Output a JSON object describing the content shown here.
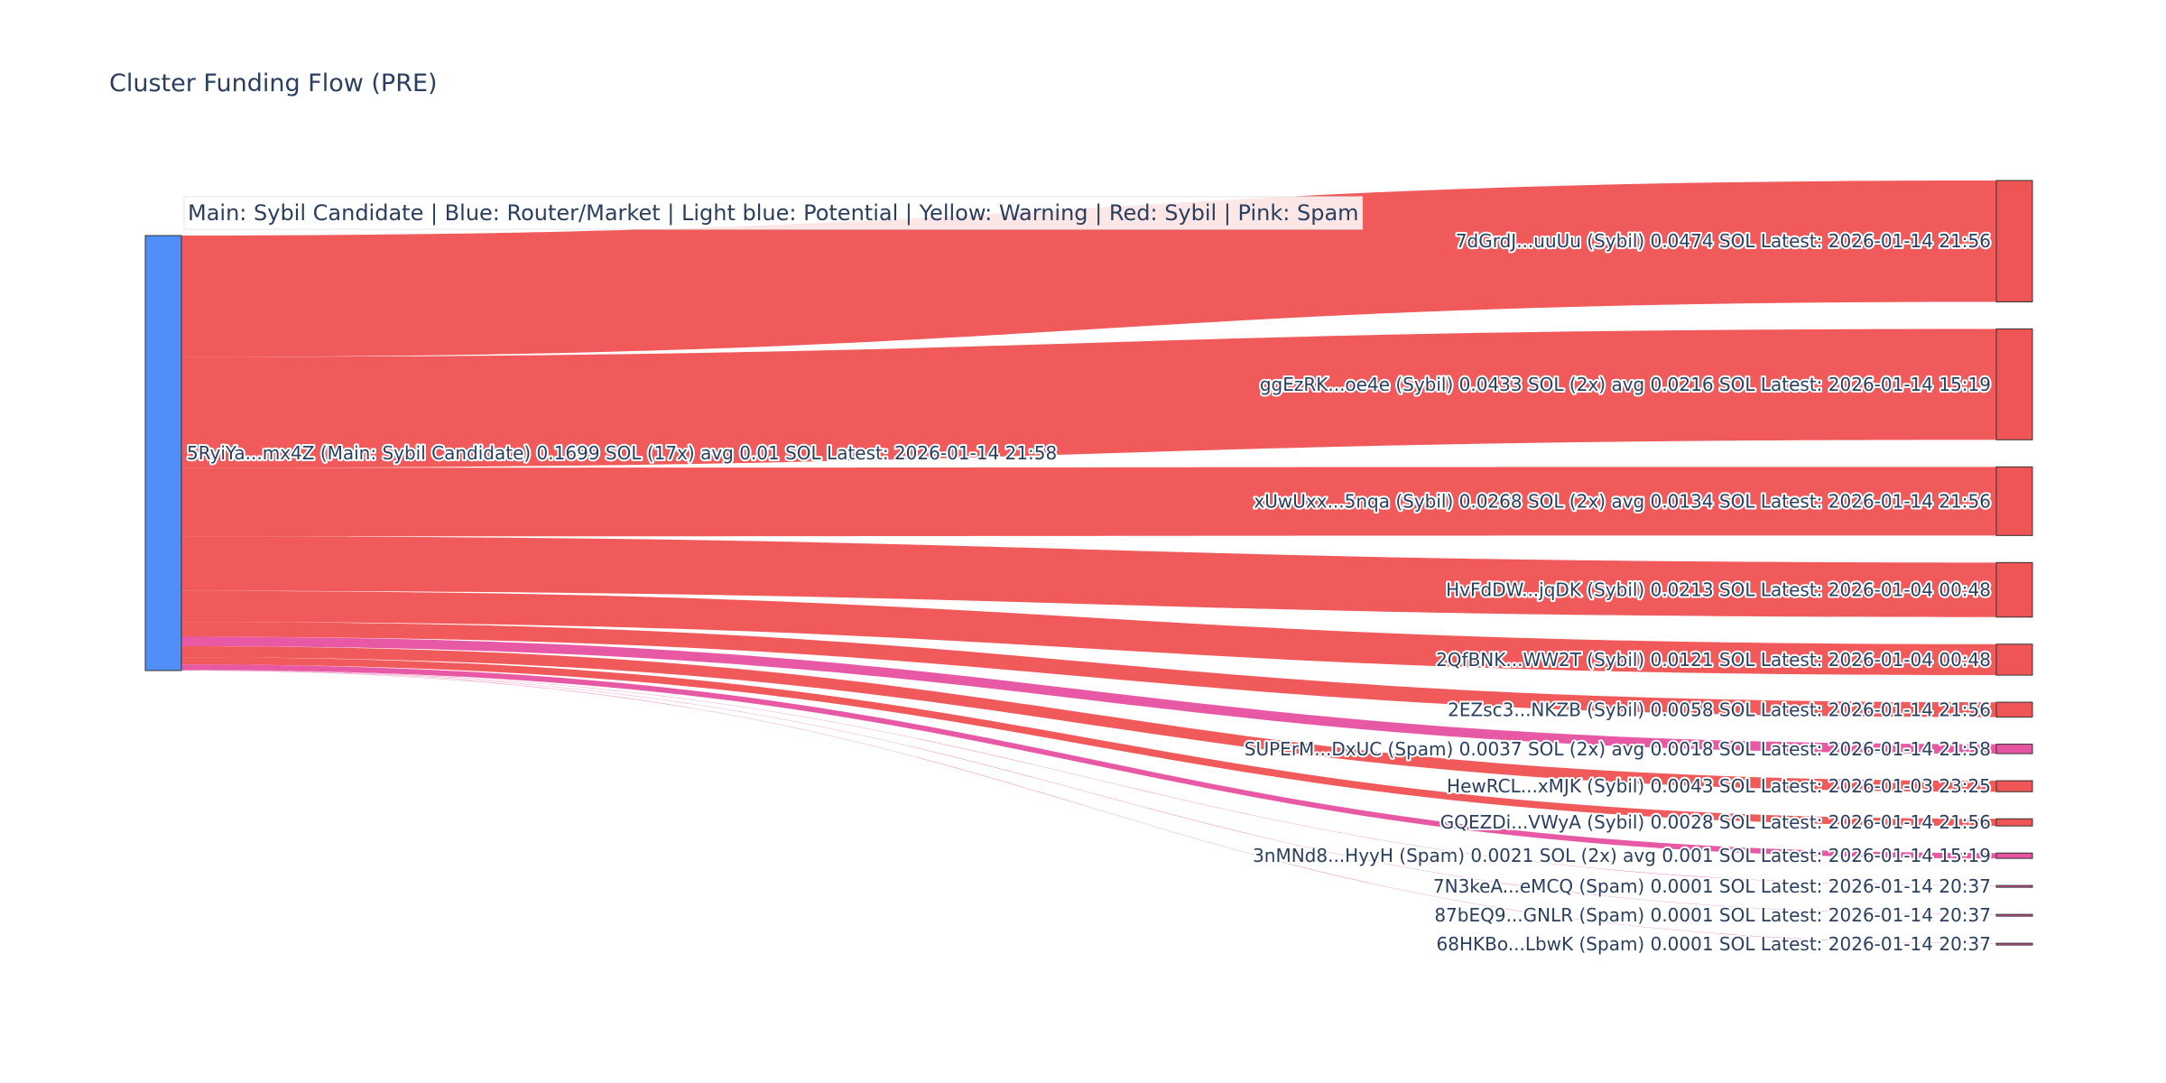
{
  "chart_data": {
    "type": "sankey",
    "title": "Cluster Funding Flow (PRE)",
    "legend_text": "Main: Sybil Candidate  |  Blue: Router/Market | Light blue: Potential | Yellow: Warning | Red: Sybil | Pink: Spam",
    "colors": {
      "source": "#4f8ff7",
      "sybil": "#ef5555",
      "spam": "#e754a2"
    },
    "source": {
      "label": "5RyiYa...mx4Z (Main: Sybil Candidate) 0.1699 SOL (17x) avg 0.01 SOL Latest: 2026-01-14 21:58",
      "value": 0.1699
    },
    "targets": [
      {
        "label": "7dGrdJ...uuUu (Sybil) 0.0474 SOL Latest: 2026-01-14 21:56",
        "value": 0.0474,
        "category": "sybil"
      },
      {
        "label": "ggEzRK...oe4e (Sybil) 0.0433 SOL (2x) avg 0.0216 SOL Latest: 2026-01-14 15:19",
        "value": 0.0433,
        "category": "sybil"
      },
      {
        "label": "xUwUxx...5nqa (Sybil) 0.0268 SOL (2x) avg 0.0134 SOL Latest: 2026-01-14 21:56",
        "value": 0.0268,
        "category": "sybil"
      },
      {
        "label": "HvFdDW...jqDK (Sybil) 0.0213 SOL Latest: 2026-01-04 00:48",
        "value": 0.0213,
        "category": "sybil"
      },
      {
        "label": "2QfBNK...WW2T (Sybil) 0.0121 SOL Latest: 2026-01-04 00:48",
        "value": 0.0121,
        "category": "sybil"
      },
      {
        "label": "2EZsc3...NKZB (Sybil) 0.0058 SOL Latest: 2026-01-14 21:56",
        "value": 0.0058,
        "category": "sybil"
      },
      {
        "label": "SUPErM...DxUC (Spam) 0.0037 SOL (2x) avg 0.0018 SOL Latest: 2026-01-14 21:58",
        "value": 0.0037,
        "category": "spam"
      },
      {
        "label": "HewRCL...xMJK (Sybil) 0.0043 SOL Latest: 2026-01-03 23:25",
        "value": 0.0043,
        "category": "sybil"
      },
      {
        "label": "GQEZDi...VWyA (Sybil) 0.0028 SOL Latest: 2026-01-14 21:56",
        "value": 0.0028,
        "category": "sybil"
      },
      {
        "label": "3nMNd8...HyyH (Spam) 0.0021 SOL (2x) avg 0.001 SOL Latest: 2026-01-14 15:19",
        "value": 0.0021,
        "category": "spam"
      },
      {
        "label": "7N3keA...eMCQ (Spam) 0.0001 SOL Latest: 2026-01-14 20:37",
        "value": 0.0001,
        "category": "spam"
      },
      {
        "label": "87bEQ9...GNLR (Spam) 0.0001 SOL Latest: 2026-01-14 20:37",
        "value": 0.0001,
        "category": "spam"
      },
      {
        "label": "68HKBo...LbwK (Spam) 0.0001 SOL Latest: 2026-01-14 20:37",
        "value": 0.0001,
        "category": "spam"
      }
    ]
  }
}
